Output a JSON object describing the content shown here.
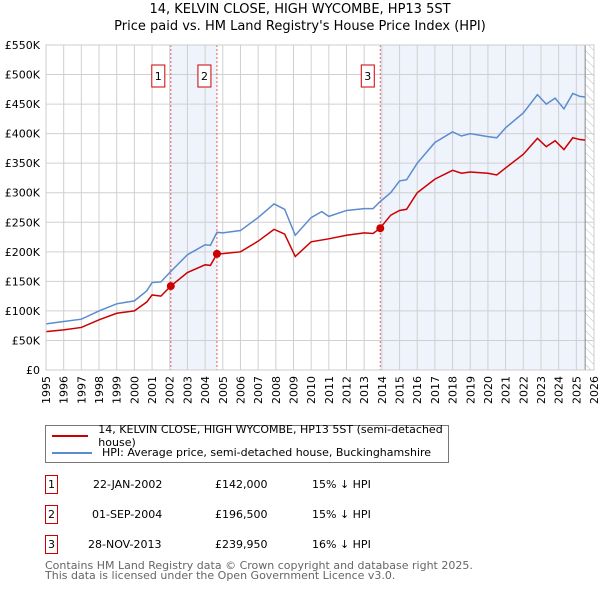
{
  "title": "14, KELVIN CLOSE, HIGH WYCOMBE, HP13 5ST",
  "subtitle": "Price paid vs. HM Land Registry's House Price Index (HPI)",
  "chart_data": {
    "type": "line",
    "xlim": [
      1995,
      2026
    ],
    "ylim": [
      0,
      550000
    ],
    "yticks": [
      0,
      50000,
      100000,
      150000,
      200000,
      250000,
      300000,
      350000,
      400000,
      450000,
      500000,
      550000
    ],
    "ytick_labels": [
      "£0",
      "£50K",
      "£100K",
      "£150K",
      "£200K",
      "£250K",
      "£300K",
      "£350K",
      "£400K",
      "£450K",
      "£500K",
      "£550K"
    ],
    "xticks": [
      1995,
      1996,
      1997,
      1998,
      1999,
      2000,
      2001,
      2002,
      2003,
      2004,
      2005,
      2006,
      2007,
      2008,
      2009,
      2010,
      2011,
      2012,
      2013,
      2014,
      2015,
      2016,
      2017,
      2018,
      2019,
      2020,
      2021,
      2022,
      2023,
      2024,
      2025,
      2026
    ],
    "grid": true,
    "series": [
      {
        "name": "14, KELVIN CLOSE, HIGH WYCOMBE, HP13 5ST (semi-detached house)",
        "color": "#cc0000",
        "x": [
          1995,
          1996,
          1997,
          1998,
          1999,
          2000,
          2000.7,
          2001,
          2001.5,
          2002.06,
          2003,
          2004,
          2004.3,
          2004.67,
          2005,
          2006,
          2007,
          2007.9,
          2008.5,
          2009.1,
          2010,
          2011,
          2012,
          2013,
          2013.5,
          2013.9,
          2014.5,
          2015,
          2015.4,
          2016,
          2017,
          2018,
          2018.5,
          2019,
          2020,
          2020.5,
          2021,
          2022,
          2022.8,
          2023.3,
          2023.8,
          2024.3,
          2024.8,
          2025.2,
          2025.5
        ],
        "y": [
          65000,
          68000,
          72000,
          85000,
          96000,
          100000,
          115000,
          127000,
          125000,
          142000,
          165000,
          178000,
          177000,
          196500,
          197000,
          200000,
          218000,
          238000,
          230000,
          192000,
          217000,
          222000,
          228000,
          232000,
          231000,
          240000,
          262000,
          270000,
          272000,
          300000,
          323000,
          338000,
          333000,
          335000,
          333000,
          330000,
          342000,
          365000,
          392000,
          378000,
          388000,
          373000,
          393000,
          390000,
          389000
        ]
      },
      {
        "name": "HPI: Average price, semi-detached house, Buckinghamshire",
        "color": "#5b8ccf",
        "x": [
          1995,
          1996,
          1997,
          1998,
          1999,
          2000,
          2000.7,
          2001,
          2001.5,
          2002,
          2003,
          2004,
          2004.3,
          2004.67,
          2005,
          2006,
          2007,
          2007.9,
          2008.5,
          2009.1,
          2010,
          2010.6,
          2011,
          2012,
          2013,
          2013.5,
          2013.9,
          2014.5,
          2015,
          2015.4,
          2016,
          2017,
          2018,
          2018.5,
          2019,
          2020,
          2020.5,
          2021,
          2022,
          2022.8,
          2023.3,
          2023.8,
          2024.3,
          2024.8,
          2025.2,
          2025.5
        ],
        "y": [
          78000,
          82000,
          86000,
          100000,
          112000,
          117000,
          134000,
          148000,
          149000,
          165000,
          195000,
          212000,
          211000,
          233000,
          232000,
          236000,
          258000,
          281000,
          272000,
          228000,
          258000,
          268000,
          260000,
          270000,
          273000,
          273000,
          285000,
          300000,
          320000,
          322000,
          350000,
          385000,
          403000,
          396000,
          400000,
          395000,
          393000,
          410000,
          435000,
          466000,
          450000,
          460000,
          442000,
          468000,
          463000,
          462000
        ]
      }
    ],
    "sales": [
      {
        "label": "1",
        "x": 2002.06,
        "y": 142000
      },
      {
        "label": "2",
        "x": 2004.67,
        "y": 196500
      },
      {
        "label": "3",
        "x": 2013.91,
        "y": 239950
      }
    ],
    "shaded": [
      [
        2002.06,
        2004.67
      ],
      [
        2013.91,
        2025.5
      ]
    ],
    "hatched_from": 2025.5,
    "legend_position": "below"
  },
  "legend": [
    {
      "label": "14, KELVIN CLOSE, HIGH WYCOMBE, HP13 5ST (semi-detached house)",
      "color": "#cc0000"
    },
    {
      "label": "HPI: Average price, semi-detached house, Buckinghamshire",
      "color": "#5b8ccf"
    }
  ],
  "transactions": [
    {
      "num": "1",
      "date": "22-JAN-2002",
      "price": "£142,000",
      "hpi": "15% ↓ HPI"
    },
    {
      "num": "2",
      "date": "01-SEP-2004",
      "price": "£196,500",
      "hpi": "15% ↓ HPI"
    },
    {
      "num": "3",
      "date": "28-NOV-2013",
      "price": "£239,950",
      "hpi": "16% ↓ HPI"
    }
  ],
  "footer": [
    "Contains HM Land Registry data © Crown copyright and database right 2025.",
    "This data is licensed under the Open Government Licence v3.0."
  ]
}
